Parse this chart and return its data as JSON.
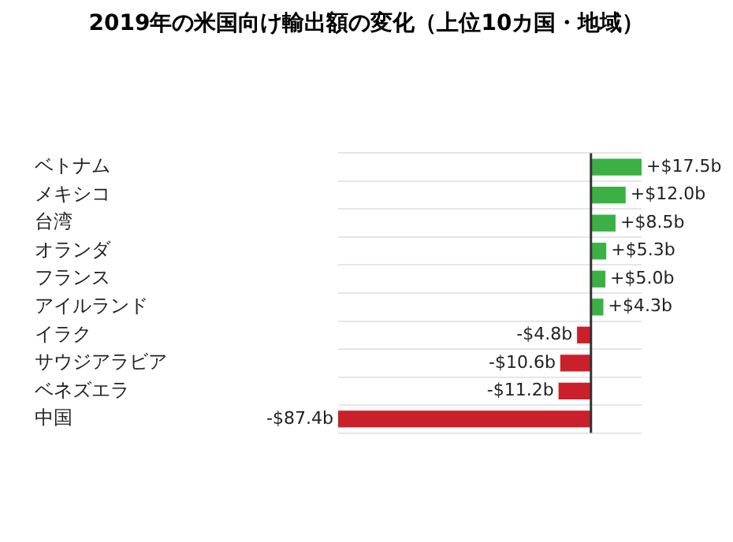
{
  "chart_data": {
    "type": "bar",
    "orientation": "horizontal",
    "title": "2019年の米国向け輸出額の変化（上位10カ国・地域）",
    "categories": [
      "ベトナム",
      "メキシコ",
      "台湾",
      "オランダ",
      "フランス",
      "アイルランド",
      "イラク",
      "サウジアラビア",
      "ベネズエラ",
      "中国"
    ],
    "values": [
      17.5,
      12.0,
      8.5,
      5.3,
      5.0,
      4.3,
      -4.8,
      -10.6,
      -11.2,
      -87.4
    ],
    "colors": [
      "#3bb143",
      "#3bb143",
      "#3bb143",
      "#3bb143",
      "#3bb143",
      "#3bb143",
      "#c9202b",
      "#c9202b",
      "#c9202b",
      "#c9202b"
    ],
    "value_labels": [
      "+$17.5b",
      "+$12.0b",
      "+$8.5b",
      "+$5.3b",
      "+$5.0b",
      "+$4.3b",
      "-$4.8b",
      "-$10.6b",
      "-$11.2b",
      "-$87.4b"
    ],
    "ref_lines": [
      {
        "axis": "x",
        "value": 0,
        "color": "#333333"
      }
    ],
    "grid": "y",
    "legend": false
  }
}
